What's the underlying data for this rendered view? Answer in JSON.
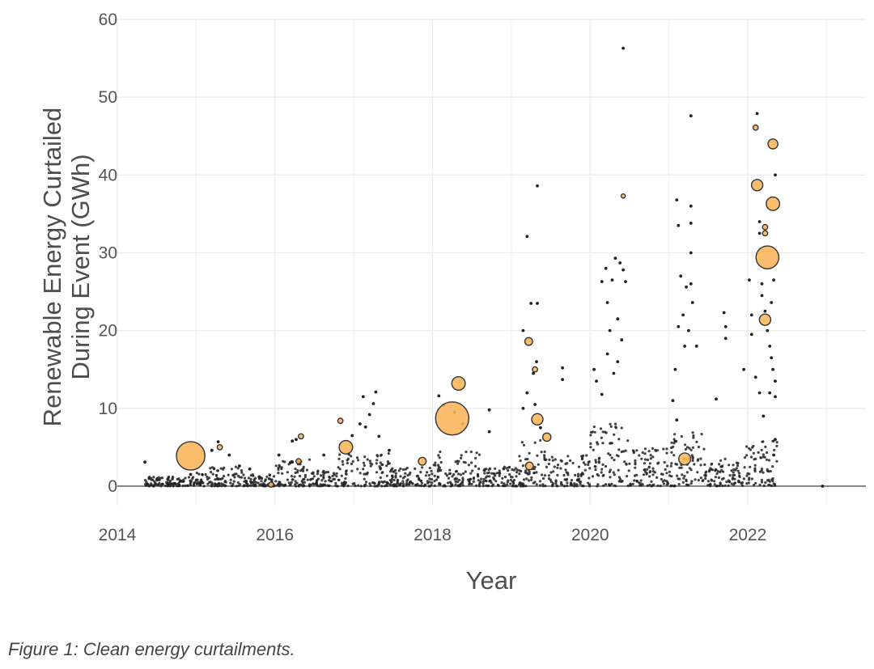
{
  "caption": "Figure 1: Clean energy curtailments.",
  "colors": {
    "bubble_fill": "#f9b45a",
    "bubble_stroke": "#333333",
    "dot": "#222222",
    "grid": "#ebebeb",
    "zero_line": "#6b6b6b"
  },
  "chart_data": {
    "type": "scatter",
    "xlabel": "Year",
    "ylabel_lines": [
      "Renewable Energy Curtailed",
      "During Event (GWh)"
    ],
    "xlim": [
      2014.0,
      2023.5
    ],
    "ylim": [
      -2.5,
      60
    ],
    "xticks": [
      2014,
      2016,
      2018,
      2020,
      2022
    ],
    "xtick_labels": [
      "2014",
      "2016",
      "2018",
      "2020",
      "2022"
    ],
    "yticks": [
      0,
      10,
      20,
      30,
      40,
      50,
      60
    ],
    "ytick_labels": [
      "0",
      "10",
      "20",
      "30",
      "40",
      "50",
      "60"
    ],
    "grid": true,
    "legend": "none",
    "size_encoding": "marker area scales with curtailment event magnitude (unlabeled)",
    "bubbles": [
      {
        "x": 2014.93,
        "y": 3.9,
        "size": 5.5
      },
      {
        "x": 2015.3,
        "y": 5.0,
        "size": 1
      },
      {
        "x": 2015.95,
        "y": 0.2,
        "size": 1
      },
      {
        "x": 2016.3,
        "y": 3.2,
        "size": 1
      },
      {
        "x": 2016.33,
        "y": 6.4,
        "size": 1
      },
      {
        "x": 2016.83,
        "y": 8.4,
        "size": 1
      },
      {
        "x": 2016.9,
        "y": 5.0,
        "size": 2.6
      },
      {
        "x": 2017.87,
        "y": 3.2,
        "size": 1.5
      },
      {
        "x": 2018.25,
        "y": 8.7,
        "size": 6.4
      },
      {
        "x": 2018.33,
        "y": 13.2,
        "size": 2.6
      },
      {
        "x": 2019.22,
        "y": 18.6,
        "size": 1.5
      },
      {
        "x": 2019.23,
        "y": 2.6,
        "size": 1.5
      },
      {
        "x": 2019.3,
        "y": 15.0,
        "size": 1
      },
      {
        "x": 2019.33,
        "y": 8.6,
        "size": 2.2
      },
      {
        "x": 2019.45,
        "y": 6.3,
        "size": 1.6
      },
      {
        "x": 2020.42,
        "y": 37.3,
        "size": 0.8
      },
      {
        "x": 2021.2,
        "y": 3.5,
        "size": 2.3
      },
      {
        "x": 2022.1,
        "y": 46.1,
        "size": 1
      },
      {
        "x": 2022.12,
        "y": 38.7,
        "size": 2.2
      },
      {
        "x": 2022.25,
        "y": 29.4,
        "size": 4.4
      },
      {
        "x": 2022.22,
        "y": 21.4,
        "size": 2.2
      },
      {
        "x": 2022.32,
        "y": 44.0,
        "size": 1.9
      },
      {
        "x": 2022.32,
        "y": 36.3,
        "size": 2.6
      },
      {
        "x": 2022.22,
        "y": 33.3,
        "size": 1
      },
      {
        "x": 2022.22,
        "y": 32.5,
        "size": 1
      }
    ],
    "dots": [
      [
        2014.35,
        3.1
      ],
      [
        2014.93,
        1.5
      ],
      [
        2015.2,
        4.6
      ],
      [
        2015.28,
        5.7
      ],
      [
        2015.42,
        4.0
      ],
      [
        2015.55,
        2.6
      ],
      [
        2015.68,
        2.2
      ],
      [
        2015.8,
        1.2
      ],
      [
        2016.05,
        4.0
      ],
      [
        2016.22,
        5.8
      ],
      [
        2016.27,
        6.0
      ],
      [
        2016.22,
        3.1
      ],
      [
        2016.62,
        4.0
      ],
      [
        2016.98,
        6.5
      ],
      [
        2017.08,
        8.0
      ],
      [
        2017.12,
        11.5
      ],
      [
        2017.15,
        7.6
      ],
      [
        2017.2,
        9.2
      ],
      [
        2017.25,
        10.6
      ],
      [
        2017.28,
        12.1
      ],
      [
        2017.32,
        6.4
      ],
      [
        2017.45,
        4.6
      ],
      [
        2018.08,
        11.6
      ],
      [
        2018.14,
        10.4
      ],
      [
        2018.28,
        9.5
      ],
      [
        2018.38,
        8.0
      ],
      [
        2018.72,
        9.8
      ],
      [
        2018.72,
        7.0
      ],
      [
        2019.15,
        20.0
      ],
      [
        2019.2,
        32.1
      ],
      [
        2019.25,
        23.5
      ],
      [
        2019.33,
        23.5
      ],
      [
        2019.33,
        38.6
      ],
      [
        2019.2,
        12.0
      ],
      [
        2019.28,
        14.5
      ],
      [
        2019.32,
        16.0
      ],
      [
        2019.37,
        7.5
      ],
      [
        2019.65,
        15.2
      ],
      [
        2019.65,
        13.7
      ],
      [
        2019.15,
        10.0
      ],
      [
        2019.3,
        10.5
      ],
      [
        2020.05,
        15.0
      ],
      [
        2020.08,
        13.5
      ],
      [
        2020.15,
        26.3
      ],
      [
        2020.2,
        28.0
      ],
      [
        2020.22,
        23.6
      ],
      [
        2020.25,
        20.0
      ],
      [
        2020.28,
        26.5
      ],
      [
        2020.32,
        29.3
      ],
      [
        2020.35,
        21.5
      ],
      [
        2020.38,
        28.7
      ],
      [
        2020.42,
        27.8
      ],
      [
        2020.45,
        26.3
      ],
      [
        2020.4,
        18.8
      ],
      [
        2020.42,
        56.3
      ],
      [
        2020.35,
        16.0
      ],
      [
        2020.22,
        17.0
      ],
      [
        2020.3,
        14.5
      ],
      [
        2020.15,
        11.8
      ],
      [
        2021.05,
        11.0
      ],
      [
        2021.1,
        8.5
      ],
      [
        2021.1,
        36.8
      ],
      [
        2021.12,
        33.5
      ],
      [
        2021.15,
        27.0
      ],
      [
        2021.18,
        22.0
      ],
      [
        2021.22,
        25.6
      ],
      [
        2021.25,
        20.0
      ],
      [
        2021.28,
        47.6
      ],
      [
        2021.28,
        36.0
      ],
      [
        2021.28,
        33.8
      ],
      [
        2021.28,
        30.0
      ],
      [
        2021.28,
        26.0
      ],
      [
        2021.3,
        23.6
      ],
      [
        2021.35,
        18.0
      ],
      [
        2021.2,
        18.0
      ],
      [
        2021.08,
        15.0
      ],
      [
        2021.12,
        20.5
      ],
      [
        2021.7,
        22.3
      ],
      [
        2021.72,
        20.5
      ],
      [
        2021.72,
        19.0
      ],
      [
        2021.6,
        11.2
      ],
      [
        2021.95,
        15.0
      ],
      [
        2022.02,
        26.5
      ],
      [
        2022.05,
        22.0
      ],
      [
        2022.05,
        19.5
      ],
      [
        2022.12,
        47.9
      ],
      [
        2022.15,
        34.0
      ],
      [
        2022.15,
        32.5
      ],
      [
        2022.18,
        26.0
      ],
      [
        2022.18,
        24.5
      ],
      [
        2022.22,
        22.5
      ],
      [
        2022.25,
        20.0
      ],
      [
        2022.28,
        18.0
      ],
      [
        2022.3,
        16.5
      ],
      [
        2022.32,
        15.0
      ],
      [
        2022.35,
        13.5
      ],
      [
        2022.35,
        40.0
      ],
      [
        2022.33,
        26.5
      ],
      [
        2022.3,
        23.6
      ],
      [
        2022.28,
        12.0
      ],
      [
        2022.1,
        14.0
      ],
      [
        2022.15,
        12.0
      ],
      [
        2022.2,
        9.0
      ],
      [
        2022.35,
        11.5
      ],
      [
        2022.35,
        6.0
      ],
      [
        2022.33,
        4.0
      ],
      [
        2022.95,
        0.0
      ]
    ],
    "dot_bands": [
      {
        "x_from": 2014.35,
        "x_to": 2015.0,
        "y_max": 1.2
      },
      {
        "x_from": 2015.0,
        "x_to": 2015.6,
        "y_max": 2.5
      },
      {
        "x_from": 2015.6,
        "x_to": 2016.0,
        "y_max": 1.5
      },
      {
        "x_from": 2016.0,
        "x_to": 2016.45,
        "y_max": 3.5
      },
      {
        "x_from": 2016.45,
        "x_to": 2016.8,
        "y_max": 2.0
      },
      {
        "x_from": 2016.8,
        "x_to": 2017.5,
        "y_max": 4.5
      },
      {
        "x_from": 2017.5,
        "x_to": 2018.0,
        "y_max": 2.5
      },
      {
        "x_from": 2018.0,
        "x_to": 2018.6,
        "y_max": 4.5
      },
      {
        "x_from": 2018.6,
        "x_to": 2019.1,
        "y_max": 2.5
      },
      {
        "x_from": 2019.1,
        "x_to": 2019.5,
        "y_max": 6.0
      },
      {
        "x_from": 2019.5,
        "x_to": 2020.0,
        "y_max": 4.0
      },
      {
        "x_from": 2020.0,
        "x_to": 2020.5,
        "y_max": 8.0
      },
      {
        "x_from": 2020.5,
        "x_to": 2021.0,
        "y_max": 5.0
      },
      {
        "x_from": 2021.0,
        "x_to": 2021.45,
        "y_max": 7.0
      },
      {
        "x_from": 2021.45,
        "x_to": 2021.95,
        "y_max": 3.5
      },
      {
        "x_from": 2021.95,
        "x_to": 2022.38,
        "y_max": 6.0
      }
    ]
  }
}
